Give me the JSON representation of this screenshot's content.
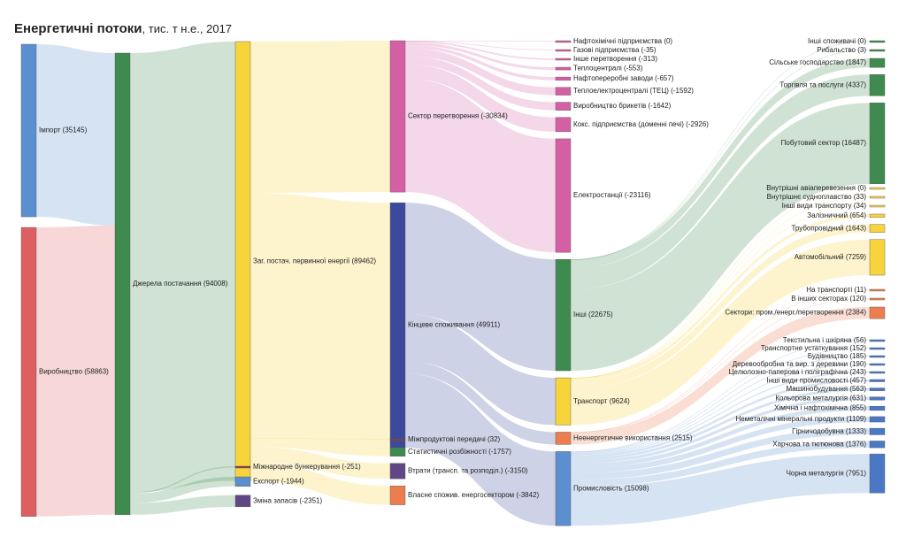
{
  "title": {
    "main": "Енергетичні потоки",
    "sub": ", тис. т н.е., 2017"
  },
  "colors": {
    "blue": "#5b8fcf",
    "red": "#de5f5f",
    "green": "#3f8a4e",
    "yellow": "#f7d33c",
    "pink": "#d55fa4",
    "navy": "#3c4a9c",
    "maroon": "#8c3a48",
    "purple": "#5f4786",
    "orange": "#ec7d4f",
    "mid_blue": "#4a78c4"
  },
  "nodes": [
    {
      "id": "import",
      "label": "Імпорт (35145)",
      "color": "blue"
    },
    {
      "id": "prod",
      "label": "Виробництво (58863)",
      "color": "red"
    },
    {
      "id": "sources",
      "label": "Джерела постачання (94008)",
      "color": "green"
    },
    {
      "id": "tpes",
      "label": "Заг. постач. первинної енергії (89462)",
      "color": "yellow"
    },
    {
      "id": "bunker",
      "label": "Міжнародне бункерування (-251)",
      "color": "maroon"
    },
    {
      "id": "export",
      "label": "Експорт (-1944)",
      "color": "blue"
    },
    {
      "id": "stock",
      "label": "Зміна запасів (-2351)",
      "color": "purple"
    },
    {
      "id": "transform",
      "label": "Сектор перетворення (-30834)",
      "color": "pink"
    },
    {
      "id": "final",
      "label": "Кінцеве споживання (49911)",
      "color": "navy"
    },
    {
      "id": "interprod",
      "label": "Міжпродуктові передачі (32)",
      "color": "maroon"
    },
    {
      "id": "statdiff",
      "label": "Статистичні розбіжності (-1757)",
      "color": "green"
    },
    {
      "id": "losses",
      "label": "Втрати (трансп. та розподіл.) (-3150)",
      "color": "purple"
    },
    {
      "id": "ownuse",
      "label": "Власне спожив. енергосектором (-3842)",
      "color": "orange"
    },
    {
      "id": "t_petchem",
      "label": "Нафтохімічні підприємства (0)",
      "color": "pink"
    },
    {
      "id": "t_gasworks",
      "label": "Газові підприємства (-35)",
      "color": "pink"
    },
    {
      "id": "t_other",
      "label": "Інше перетворення (-313)",
      "color": "pink"
    },
    {
      "id": "t_heat",
      "label": "Теплоцентралі (-553)",
      "color": "pink"
    },
    {
      "id": "t_refin",
      "label": "Нафтопереробні заводи (-657)",
      "color": "pink"
    },
    {
      "id": "t_chp",
      "label": "Теплоелектроцентралі (ТЕЦ) (-1592)",
      "color": "pink"
    },
    {
      "id": "t_briq",
      "label": "Виробництво брикетів (-1642)",
      "color": "pink"
    },
    {
      "id": "t_coke",
      "label": "Кокс. підприємства (доменні печі) (-2926)",
      "color": "pink"
    },
    {
      "id": "t_elec",
      "label": "Електростанції (-23116)",
      "color": "pink"
    },
    {
      "id": "other",
      "label": "Інші (22675)",
      "color": "green"
    },
    {
      "id": "transport",
      "label": "Транспорт (9624)",
      "color": "yellow"
    },
    {
      "id": "nonenergy",
      "label": "Неенергетичне використання (2515)",
      "color": "orange"
    },
    {
      "id": "industry",
      "label": "Промисловість (15098)",
      "color": "blue"
    },
    {
      "id": "o_othercons",
      "label": "Інші споживачі (0)",
      "color": "green"
    },
    {
      "id": "o_fish",
      "label": "Рибальство (3)",
      "color": "green"
    },
    {
      "id": "o_agri",
      "label": "Сільське господарство (1847)",
      "color": "green"
    },
    {
      "id": "o_trade",
      "label": "Торгівля та послуги (4337)",
      "color": "green"
    },
    {
      "id": "o_house",
      "label": "Побутовий сектор (16487)",
      "color": "green"
    },
    {
      "id": "tr_air",
      "label": "Внутрішні авіаперевезення (0)",
      "color": "yellow"
    },
    {
      "id": "tr_nav",
      "label": "Внутрішнє судноплавство (33)",
      "color": "yellow"
    },
    {
      "id": "tr_other",
      "label": "Інші види транспорту (34)",
      "color": "yellow"
    },
    {
      "id": "tr_rail",
      "label": "Залізничний (654)",
      "color": "yellow"
    },
    {
      "id": "tr_pipe",
      "label": "Трубопровідний (1643)",
      "color": "yellow"
    },
    {
      "id": "tr_road",
      "label": "Автомобільний (7259)",
      "color": "yellow"
    },
    {
      "id": "ne_transp",
      "label": "На транспорті (11)",
      "color": "orange"
    },
    {
      "id": "ne_other",
      "label": "В інших секторах (120)",
      "color": "orange"
    },
    {
      "id": "ne_ind",
      "label": "Сектори: пром./енерг./перетворення (2384)",
      "color": "orange"
    },
    {
      "id": "i_textile",
      "label": "Текстильна і шкіряна (56)",
      "color": "mid_blue"
    },
    {
      "id": "i_transeq",
      "label": "Транспортне устаткування (152)",
      "color": "mid_blue"
    },
    {
      "id": "i_constr",
      "label": "Будівництво (185)",
      "color": "mid_blue"
    },
    {
      "id": "i_wood",
      "label": "Деревообробна та вир. з деревини (190)",
      "color": "mid_blue"
    },
    {
      "id": "i_paper",
      "label": "Целюлозно-паперова і поліграфічна (243)",
      "color": "mid_blue"
    },
    {
      "id": "i_otherind",
      "label": "Інші види промисловості (457)",
      "color": "mid_blue"
    },
    {
      "id": "i_mach",
      "label": "Машинобудування (563)",
      "color": "mid_blue"
    },
    {
      "id": "i_nonfer",
      "label": "Кольорова металургія (631)",
      "color": "mid_blue"
    },
    {
      "id": "i_chem",
      "label": "Хімічна і нафтохімічна (855)",
      "color": "mid_blue"
    },
    {
      "id": "i_nonmet",
      "label": "Неметалічні мінеральні продукти (1109)",
      "color": "mid_blue"
    },
    {
      "id": "i_mining",
      "label": "Гірничодобувна (1333)",
      "color": "mid_blue"
    },
    {
      "id": "i_food",
      "label": "Харчова та тютюнова (1376)",
      "color": "mid_blue"
    },
    {
      "id": "i_iron",
      "label": "Чорна металургія (7951)",
      "color": "mid_blue"
    }
  ],
  "links": [
    {
      "source": "import",
      "target": "sources",
      "value": 35145
    },
    {
      "source": "prod",
      "target": "sources",
      "value": 58863
    },
    {
      "source": "sources",
      "target": "tpes",
      "value": 89462
    },
    {
      "source": "sources",
      "target": "bunker",
      "value": 251
    },
    {
      "source": "sources",
      "target": "export",
      "value": 1944
    },
    {
      "source": "sources",
      "target": "stock",
      "value": 2351
    },
    {
      "source": "tpes",
      "target": "transform",
      "value": 30834
    },
    {
      "source": "tpes",
      "target": "final",
      "value": 49911
    },
    {
      "source": "tpes",
      "target": "interprod",
      "value": 32
    },
    {
      "source": "tpes",
      "target": "statdiff",
      "value": 1757
    },
    {
      "source": "tpes",
      "target": "losses",
      "value": 3150
    },
    {
      "source": "tpes",
      "target": "ownuse",
      "value": 3842
    },
    {
      "source": "transform",
      "target": "t_petchem",
      "value": 0
    },
    {
      "source": "transform",
      "target": "t_gasworks",
      "value": 35
    },
    {
      "source": "transform",
      "target": "t_other",
      "value": 313
    },
    {
      "source": "transform",
      "target": "t_heat",
      "value": 553
    },
    {
      "source": "transform",
      "target": "t_refin",
      "value": 657
    },
    {
      "source": "transform",
      "target": "t_chp",
      "value": 1592
    },
    {
      "source": "transform",
      "target": "t_briq",
      "value": 1642
    },
    {
      "source": "transform",
      "target": "t_coke",
      "value": 2926
    },
    {
      "source": "transform",
      "target": "t_elec",
      "value": 23116
    },
    {
      "source": "final",
      "target": "other",
      "value": 22675
    },
    {
      "source": "final",
      "target": "transport",
      "value": 9624
    },
    {
      "source": "final",
      "target": "nonenergy",
      "value": 2515
    },
    {
      "source": "final",
      "target": "industry",
      "value": 15098
    },
    {
      "source": "other",
      "target": "o_othercons",
      "value": 0
    },
    {
      "source": "other",
      "target": "o_fish",
      "value": 3
    },
    {
      "source": "other",
      "target": "o_agri",
      "value": 1847
    },
    {
      "source": "other",
      "target": "o_trade",
      "value": 4337
    },
    {
      "source": "other",
      "target": "o_house",
      "value": 16487
    },
    {
      "source": "transport",
      "target": "tr_air",
      "value": 0
    },
    {
      "source": "transport",
      "target": "tr_nav",
      "value": 33
    },
    {
      "source": "transport",
      "target": "tr_other",
      "value": 34
    },
    {
      "source": "transport",
      "target": "tr_rail",
      "value": 654
    },
    {
      "source": "transport",
      "target": "tr_pipe",
      "value": 1643
    },
    {
      "source": "transport",
      "target": "tr_road",
      "value": 7259
    },
    {
      "source": "nonenergy",
      "target": "ne_transp",
      "value": 11
    },
    {
      "source": "nonenergy",
      "target": "ne_other",
      "value": 120
    },
    {
      "source": "nonenergy",
      "target": "ne_ind",
      "value": 2384
    },
    {
      "source": "industry",
      "target": "i_textile",
      "value": 56
    },
    {
      "source": "industry",
      "target": "i_transeq",
      "value": 152
    },
    {
      "source": "industry",
      "target": "i_constr",
      "value": 185
    },
    {
      "source": "industry",
      "target": "i_wood",
      "value": 190
    },
    {
      "source": "industry",
      "target": "i_paper",
      "value": 243
    },
    {
      "source": "industry",
      "target": "i_otherind",
      "value": 457
    },
    {
      "source": "industry",
      "target": "i_mach",
      "value": 563
    },
    {
      "source": "industry",
      "target": "i_nonfer",
      "value": 631
    },
    {
      "source": "industry",
      "target": "i_chem",
      "value": 855
    },
    {
      "source": "industry",
      "target": "i_nonmet",
      "value": 1109
    },
    {
      "source": "industry",
      "target": "i_mining",
      "value": 1333
    },
    {
      "source": "industry",
      "target": "i_food",
      "value": 1376
    },
    {
      "source": "industry",
      "target": "i_iron",
      "value": 7951
    }
  ]
}
